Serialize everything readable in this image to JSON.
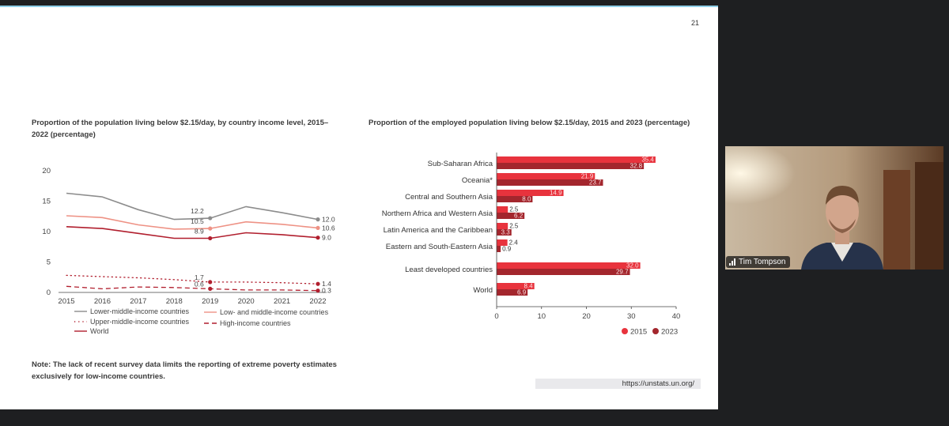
{
  "slide": {
    "page_number": "21",
    "note": "Note: The lack of recent survey data limits the reporting of extreme poverty estimates exclusively for low-income countries.",
    "source_url": "https://unstats.un.org/"
  },
  "participant": {
    "name": "Tim Tompson",
    "signal_icon": "signal-bars-icon"
  },
  "colors": {
    "gray": "#8c8c8c",
    "salmon": "#ee9285",
    "dark_red": "#b11f2e",
    "bar_2015": "#e8333d",
    "bar_2023": "#a3262d"
  },
  "chart_data": [
    {
      "type": "line",
      "title": "Proportion of the population living below $2.15/day, by country income level, 2015–2022 (percentage)",
      "x": [
        2015,
        2016,
        2017,
        2018,
        2019,
        2020,
        2021,
        2022
      ],
      "x_tick_labels": [
        "2015",
        "2016",
        "2017",
        "2018",
        "2019",
        "2020",
        "2021",
        "2022"
      ],
      "ylim": [
        0,
        20
      ],
      "y_ticks": [
        0,
        5,
        10,
        15,
        20
      ],
      "y_tick_labels": [
        "0",
        "5",
        "10",
        "15",
        "20"
      ],
      "series": [
        {
          "name": "Lower-middle-income countries",
          "style": "solid",
          "color": "#8c8c8c",
          "values": [
            16.3,
            15.7,
            13.6,
            12.0,
            12.2,
            14.1,
            13.1,
            12.0
          ],
          "labels": [
            {
              "index": 4,
              "text": "12.2"
            },
            {
              "index": 7,
              "text": "12.0"
            }
          ]
        },
        {
          "name": "Low- and middle-income countries",
          "style": "solid",
          "color": "#ee9285",
          "values": [
            12.6,
            12.3,
            11.1,
            10.4,
            10.5,
            11.6,
            11.2,
            10.6
          ],
          "labels": [
            {
              "index": 4,
              "text": "10.5"
            },
            {
              "index": 7,
              "text": "10.6"
            }
          ]
        },
        {
          "name": "Upper-middle-income countries",
          "style": "dotted",
          "color": "#b11f2e",
          "values": [
            2.8,
            2.6,
            2.4,
            2.1,
            1.7,
            1.7,
            1.6,
            1.4
          ],
          "labels": [
            {
              "index": 4,
              "text": "1.7"
            },
            {
              "index": 7,
              "text": "1.4"
            }
          ]
        },
        {
          "name": "High-income countries",
          "style": "dashed",
          "color": "#b11f2e",
          "values": [
            1.0,
            0.6,
            0.9,
            0.8,
            0.6,
            0.4,
            0.4,
            0.3
          ],
          "labels": [
            {
              "index": 4,
              "text": "0.6"
            },
            {
              "index": 7,
              "text": "0.3"
            }
          ]
        },
        {
          "name": "World",
          "style": "solid",
          "color": "#b11f2e",
          "values": [
            10.8,
            10.5,
            9.7,
            8.9,
            8.9,
            9.8,
            9.5,
            9.0
          ],
          "labels": [
            {
              "index": 4,
              "text": "8.9"
            },
            {
              "index": 7,
              "text": "9.0"
            }
          ]
        }
      ],
      "legend": [
        {
          "name": "Lower-middle-income countries",
          "style": "solid",
          "color": "#8c8c8c"
        },
        {
          "name": "Low- and middle-income countries",
          "style": "solid",
          "color": "#ee9285"
        },
        {
          "name": "Upper-middle-income countries",
          "style": "dotted",
          "color": "#b11f2e"
        },
        {
          "name": "High-income countries",
          "style": "dashed",
          "color": "#b11f2e"
        },
        {
          "name": "World",
          "style": "solid",
          "color": "#b11f2e"
        }
      ]
    },
    {
      "type": "bar",
      "orientation": "horizontal",
      "title": "Proportion of the employed population living below $2.15/day, 2015 and 2023 (percentage)",
      "categories": [
        "Sub-Saharan Africa",
        "Oceania*",
        "Central and Southern Asia",
        "Northern Africa and Western Asia",
        "Latin America and the Caribbean",
        "Eastern and South-Eastern Asia",
        "Least developed countries",
        "World"
      ],
      "series": [
        {
          "name": "2015",
          "color": "#e8333d",
          "values": [
            35.4,
            21.9,
            14.9,
            2.5,
            2.5,
            2.4,
            32.0,
            8.4
          ],
          "value_labels": [
            "35.4",
            "21.9",
            "14.9",
            "2.5",
            "2.5",
            "2.4",
            "32.0",
            "8.4"
          ]
        },
        {
          "name": "2023",
          "color": "#a3262d",
          "values": [
            32.8,
            23.7,
            8.0,
            6.2,
            3.3,
            0.9,
            29.7,
            6.9
          ],
          "value_labels": [
            "32.8",
            "23.7",
            "8.0",
            "6.2",
            "3.3",
            "0.9",
            "29.7",
            "6.9"
          ]
        }
      ],
      "xlim": [
        0,
        40
      ],
      "x_ticks": [
        0,
        10,
        20,
        30,
        40
      ],
      "x_tick_labels": [
        "0",
        "10",
        "20",
        "30",
        "40"
      ],
      "legend_position": "bottom-right"
    }
  ]
}
